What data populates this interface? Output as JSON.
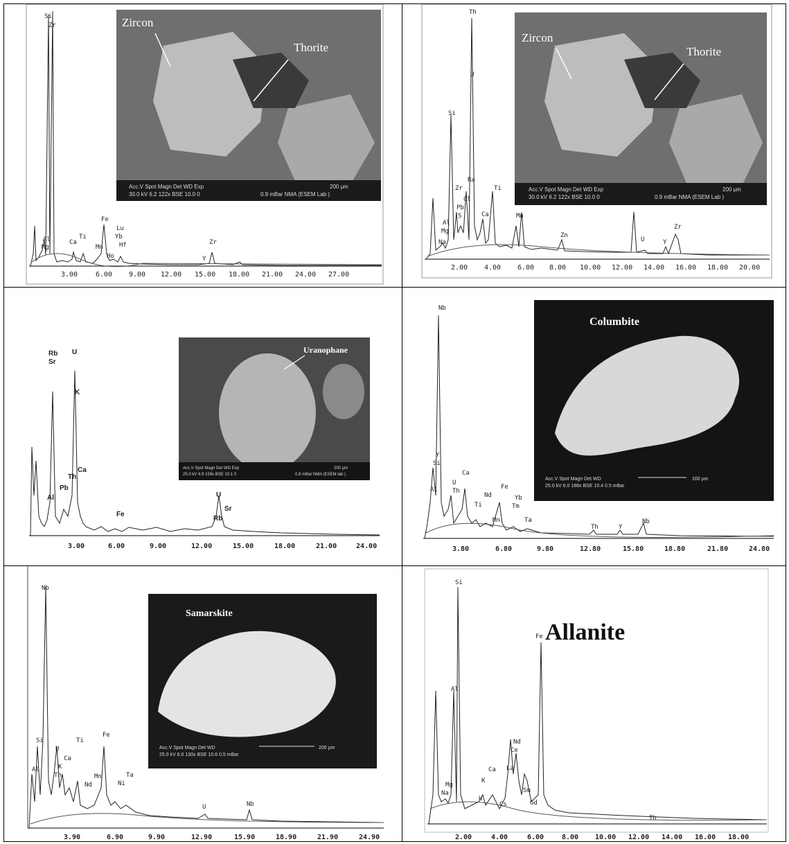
{
  "panels": [
    {
      "id": "zircon-thorite-1",
      "image_labels": [
        "Zircon",
        "Thorite"
      ],
      "micrograph_data_bar": [
        "Acc.V  Spot Magn    Det  WD  Exp",
        "30.0 kV 6.2   122x     BSE  10.0  0",
        "200 µm",
        "0.9 mBar NMA (ESEM Lab )"
      ],
      "ticks": [
        "3.00",
        "6.00",
        "9.00",
        "12.00",
        "15.00",
        "18.00",
        "21.00",
        "24.00",
        "27.00"
      ],
      "peak_labels": [
        "Si",
        "Zr",
        "Al",
        "Mg",
        "Ca",
        "Ti",
        "Mn",
        "Ho",
        "Fe",
        "Lu",
        "Yb",
        "Hf",
        "Y",
        "Zr"
      ]
    },
    {
      "id": "zircon-thorite-2",
      "image_labels": [
        "Zircon",
        "Thorite"
      ],
      "micrograph_data_bar": [
        "Acc.V  Spot Magn    Det  WD  Exp",
        "30.0 kV 6.2   122x     BSE  10.0  0",
        "200 µm",
        "0.9 mBar NMA (ESEM Lab )"
      ],
      "ticks": [
        "2.00",
        "4.00",
        "6.00",
        "8.00",
        "10.00",
        "12.00",
        "14.00",
        "16.00",
        "18.00",
        "20.00"
      ],
      "peak_labels": [
        "Th",
        "U",
        "Si",
        "Ra",
        "Zr",
        "Cl",
        "Pb",
        "S",
        "Ti",
        "Ca",
        "Mn",
        "Al",
        "Mg",
        "Na",
        "Zn",
        "U",
        "Y",
        "Zr"
      ]
    },
    {
      "id": "uranophane",
      "image_labels": [
        "Uranophane"
      ],
      "micrograph_data_bar": [
        "Acc.V  Spot Magn    Det  WD  Exp",
        "25.0 kV 4.9   159x     BSE  10.1  0",
        "200 µm",
        "0.8 mBar NMA (ESEM lab )"
      ],
      "ticks": [
        "3.00",
        "6.00",
        "9.00",
        "12.00",
        "15.00",
        "18.00",
        "21.00",
        "24.00"
      ],
      "peak_labels": [
        "Rb",
        "Sr",
        "U",
        "K",
        "Th",
        "Ca",
        "Pb",
        "Al",
        "Fe",
        "U",
        "Sr",
        "Rb"
      ]
    },
    {
      "id": "columbite",
      "image_labels": [
        "Columbite"
      ],
      "micrograph_data_bar": [
        "Acc.V  Spot Magn    Det  WD",
        "25.0 kV 6.0   188x     BSE  10.4  0.5 mBar",
        "100 µm"
      ],
      "ticks": [
        "3.80",
        "6.80",
        "9.80",
        "12.80",
        "15.80",
        "18.80",
        "21.80",
        "24.80"
      ],
      "peak_labels": [
        "Nb",
        "Y",
        "Si",
        "Al",
        "U",
        "Th",
        "Ca",
        "Ti",
        "Nd",
        "Mn",
        "Fe",
        "Yb",
        "Tm",
        "Ta",
        "Th",
        "Y",
        "Nb"
      ]
    },
    {
      "id": "samarskite",
      "image_labels": [
        "Samarskite"
      ],
      "micrograph_data_bar": [
        "Acc.V  Spot Magn    Det  WD",
        "25.0 kV 6.0   130x     BSE  10.6  0.5 mBar",
        "200 µm"
      ],
      "ticks": [
        "3.90",
        "6.90",
        "9.90",
        "12.90",
        "15.90",
        "18.90",
        "21.90",
        "24.90"
      ],
      "peak_labels": [
        "Nb",
        "Si",
        "Al",
        "U",
        "Ca",
        "K",
        "Th",
        "Ti",
        "Nd",
        "Mn",
        "Fe",
        "Ni",
        "Ta",
        "U",
        "Nb"
      ]
    },
    {
      "id": "allanite",
      "image_labels": [
        "Allanite"
      ],
      "ticks": [
        "2.00",
        "4.00",
        "6.00",
        "8.00",
        "10.00",
        "12.00",
        "14.00",
        "16.00",
        "18.00"
      ],
      "peak_labels": [
        "Si",
        "Al",
        "Mg",
        "Na",
        "K",
        "U",
        "Ca",
        "Cs",
        "La",
        "Ce",
        "Nd",
        "Fe",
        "Sm",
        "Gd",
        "Th"
      ]
    }
  ]
}
